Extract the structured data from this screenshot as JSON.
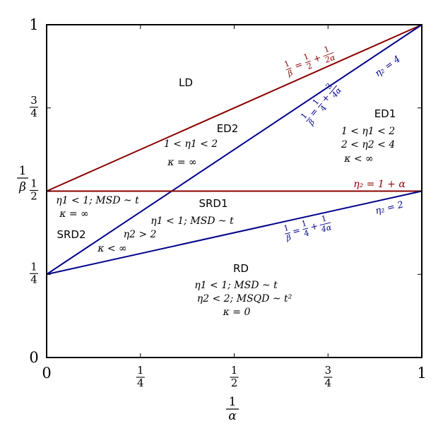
{
  "chart_data": {
    "type": "line",
    "title": "",
    "xlabel": "1/α",
    "ylabel": "1/β",
    "xlim": [
      0,
      1
    ],
    "ylim": [
      0,
      1
    ],
    "grid": false,
    "x_ticks": [
      {
        "value": 0,
        "num": "0"
      },
      {
        "value": 0.25,
        "num": "1",
        "den": "4"
      },
      {
        "value": 0.5,
        "num": "1",
        "den": "2"
      },
      {
        "value": 0.75,
        "num": "3",
        "den": "4"
      },
      {
        "value": 1,
        "num": "1"
      }
    ],
    "y_ticks": [
      {
        "value": 0,
        "num": "0"
      },
      {
        "value": 0.25,
        "num": "1",
        "den": "4"
      },
      {
        "value": 0.5,
        "num": "1",
        "den": "2"
      },
      {
        "value": 0.75,
        "num": "3",
        "den": "4"
      },
      {
        "value": 1,
        "num": "1"
      }
    ],
    "colors": {
      "red": "#8b0000",
      "blue": "#00008b",
      "black": "#000000"
    },
    "series": [
      {
        "color": "#8b0000",
        "x": [
          0,
          1
        ],
        "y": [
          0.5,
          1
        ]
      },
      {
        "color": "#00008b",
        "x": [
          0,
          1
        ],
        "y": [
          0.25,
          1
        ]
      },
      {
        "color": "#8b0000",
        "x": [
          0,
          1
        ],
        "y": [
          0.5,
          0.5
        ]
      },
      {
        "color": "#00008b",
        "x": [
          0,
          1
        ],
        "y": [
          0.25,
          0.5
        ]
      }
    ],
    "line_labels": [
      {
        "text": "1/β = 1/2 + 1/2α",
        "color": "#8b0000"
      },
      {
        "text": "η2 = 4",
        "color": "#00008b"
      },
      {
        "text": "1/β = 1/4 + 3/4α",
        "color": "#00008b"
      },
      {
        "text": "η2 = 1 + α",
        "color": "#8b0000"
      },
      {
        "text": "η2 = 2",
        "color": "#00008b"
      },
      {
        "text": "1/β = 1/4 + 1/4α",
        "color": "#00008b"
      }
    ],
    "regions": [
      {
        "name": "LD",
        "conditions": []
      },
      {
        "name": "ED2",
        "conditions": [
          "1 < η1 < 2",
          "κ = ∞"
        ]
      },
      {
        "name": "ED1",
        "conditions": [
          "1 < η1 < 2",
          "2 < η2 < 4",
          "κ < ∞"
        ]
      },
      {
        "name": "SRD1",
        "conditions": [
          "η1 < 1; MSD ~ t"
        ]
      },
      {
        "name": "SRD2",
        "conditions": [
          "η1 < 1; MSD ~ t",
          "κ = ∞"
        ]
      },
      {
        "name": "",
        "conditions": [
          "η2 > 2",
          "κ < ∞"
        ]
      },
      {
        "name": "RD",
        "conditions": [
          "η1 < 1; MSD ~ t",
          "η2 < 2; MSQD ~ t²",
          "κ = 0"
        ]
      }
    ]
  }
}
